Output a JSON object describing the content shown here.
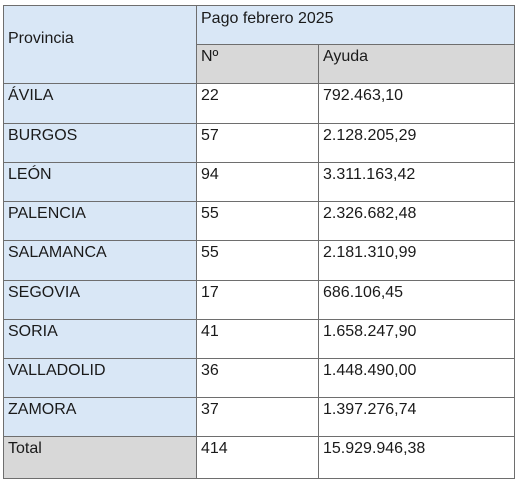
{
  "header": {
    "province_label": "Provincia",
    "period_label": "Pago febrero 2025",
    "count_label": "Nº",
    "amount_label": "Ayuda"
  },
  "rows": [
    {
      "province": "ÁVILA",
      "count": "22",
      "amount": "792.463,10"
    },
    {
      "province": "BURGOS",
      "count": "57",
      "amount": "2.128.205,29"
    },
    {
      "province": "LEÓN",
      "count": "94",
      "amount": "3.311.163,42"
    },
    {
      "province": "PALENCIA",
      "count": "55",
      "amount": "2.326.682,48"
    },
    {
      "province": "SALAMANCA",
      "count": "55",
      "amount": "2.181.310,99"
    },
    {
      "province": "SEGOVIA",
      "count": "17",
      "amount": "686.106,45"
    },
    {
      "province": "SORIA",
      "count": "41",
      "amount": "1.658.247,90"
    },
    {
      "province": "VALLADOLID",
      "count": "36",
      "amount": "1.448.490,00"
    },
    {
      "province": "ZAMORA",
      "count": "37",
      "amount": "1.397.276,74"
    }
  ],
  "total": {
    "label": "Total",
    "count": "414",
    "amount": "15.929.946,38"
  },
  "colors": {
    "header_blue": "#d9e7f6",
    "header_gray": "#d8d8d8",
    "border": "#6e6e6e"
  }
}
